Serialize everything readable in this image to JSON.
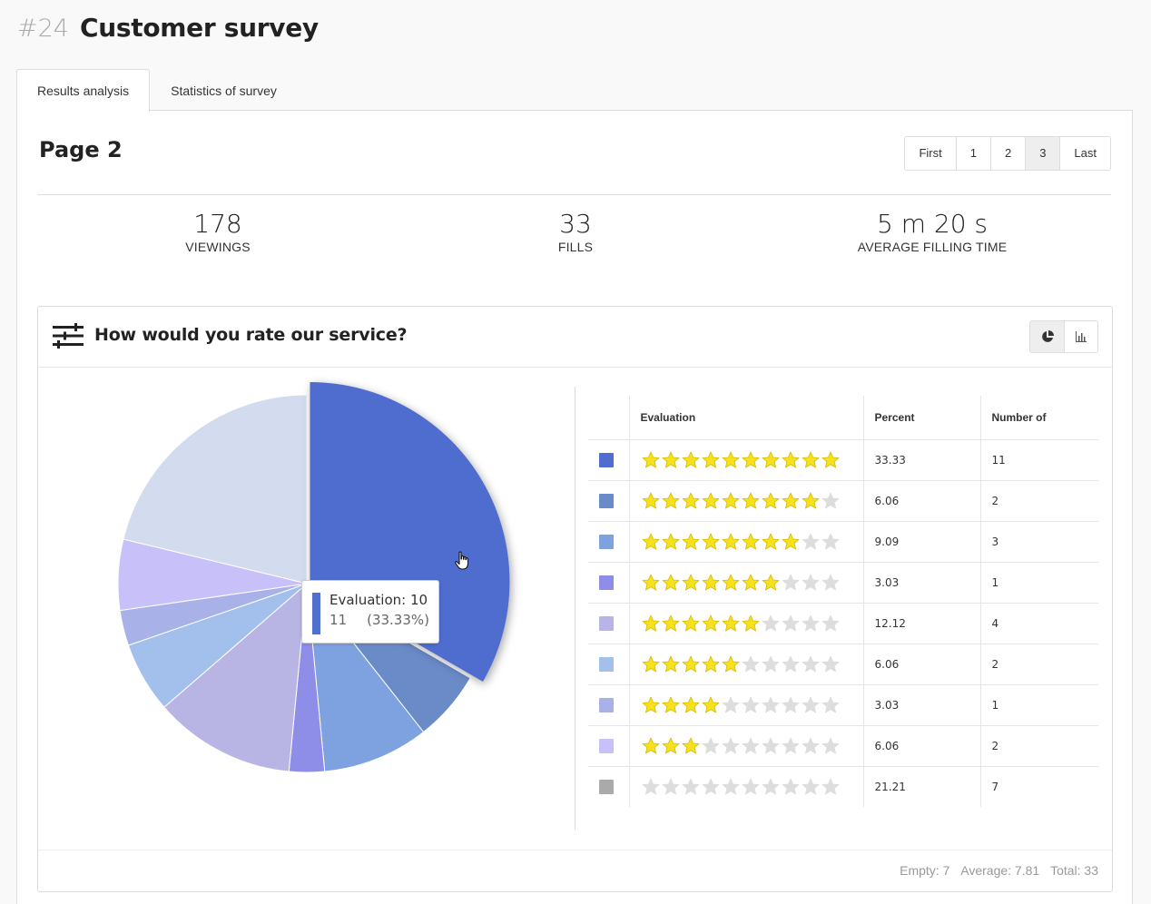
{
  "header": {
    "survey_number": "#24",
    "title": "Customer survey"
  },
  "tabs": [
    {
      "label": "Results analysis",
      "active": true
    },
    {
      "label": "Statistics of survey",
      "active": false
    }
  ],
  "page": {
    "title": "Page 2",
    "pagination": [
      "First",
      "1",
      "2",
      "3",
      "Last"
    ],
    "current": "3"
  },
  "stats": [
    {
      "value": "178",
      "label": "VIEWINGS"
    },
    {
      "value": "33",
      "label": "FILLS"
    },
    {
      "value": "5 m 20 s",
      "label": "AVERAGE FILLING TIME"
    }
  ],
  "question": {
    "title": "How would you rate our service?",
    "view_buttons": [
      "pie-chart-icon",
      "bar-chart-icon"
    ],
    "table_headers": [
      "",
      "Evaluation",
      "Percent",
      "Number of"
    ],
    "rows": [
      {
        "color": "#506ccf",
        "stars": 10,
        "percent": "33.33",
        "count": "11"
      },
      {
        "color": "#6a8ac8",
        "stars": 9,
        "percent": "6.06",
        "count": "2"
      },
      {
        "color": "#7ea1e0",
        "stars": 8,
        "percent": "9.09",
        "count": "3"
      },
      {
        "color": "#8e8ee8",
        "stars": 7,
        "percent": "3.03",
        "count": "1"
      },
      {
        "color": "#b8b4e4",
        "stars": 6,
        "percent": "12.12",
        "count": "4"
      },
      {
        "color": "#a3c0ec",
        "stars": 5,
        "percent": "6.06",
        "count": "2"
      },
      {
        "color": "#a8b2e8",
        "stars": 4,
        "percent": "3.03",
        "count": "1"
      },
      {
        "color": "#c8c0f8",
        "stars": 3,
        "percent": "6.06",
        "count": "2"
      },
      {
        "color": "#aaaaaa",
        "stars": 0,
        "percent": "21.21",
        "count": "7"
      }
    ],
    "tooltip": {
      "line1": "Evaluation: 10",
      "count": "11",
      "pct": "(33.33%)"
    },
    "footer": {
      "empty": "Empty: 7",
      "average": "Average: 7.81",
      "total": "Total: 33"
    }
  },
  "chart_data": {
    "type": "pie",
    "categories": [
      "10",
      "9",
      "8",
      "7",
      "6",
      "5",
      "4",
      "3",
      "0"
    ],
    "values": [
      33.33,
      6.06,
      9.09,
      3.03,
      12.12,
      6.06,
      3.03,
      6.06,
      21.21
    ],
    "counts": [
      11,
      2,
      3,
      1,
      4,
      2,
      1,
      2,
      7
    ],
    "colors": [
      "#506ccf",
      "#6a8ac8",
      "#7ea1e0",
      "#8e8ee8",
      "#b8b4e4",
      "#a3c0ec",
      "#a8b2e8",
      "#c8c0f8",
      "#d3dbee"
    ],
    "highlighted": "10"
  },
  "colors": {
    "star_on": "#f5e21c",
    "star_off": "#dddddd"
  }
}
